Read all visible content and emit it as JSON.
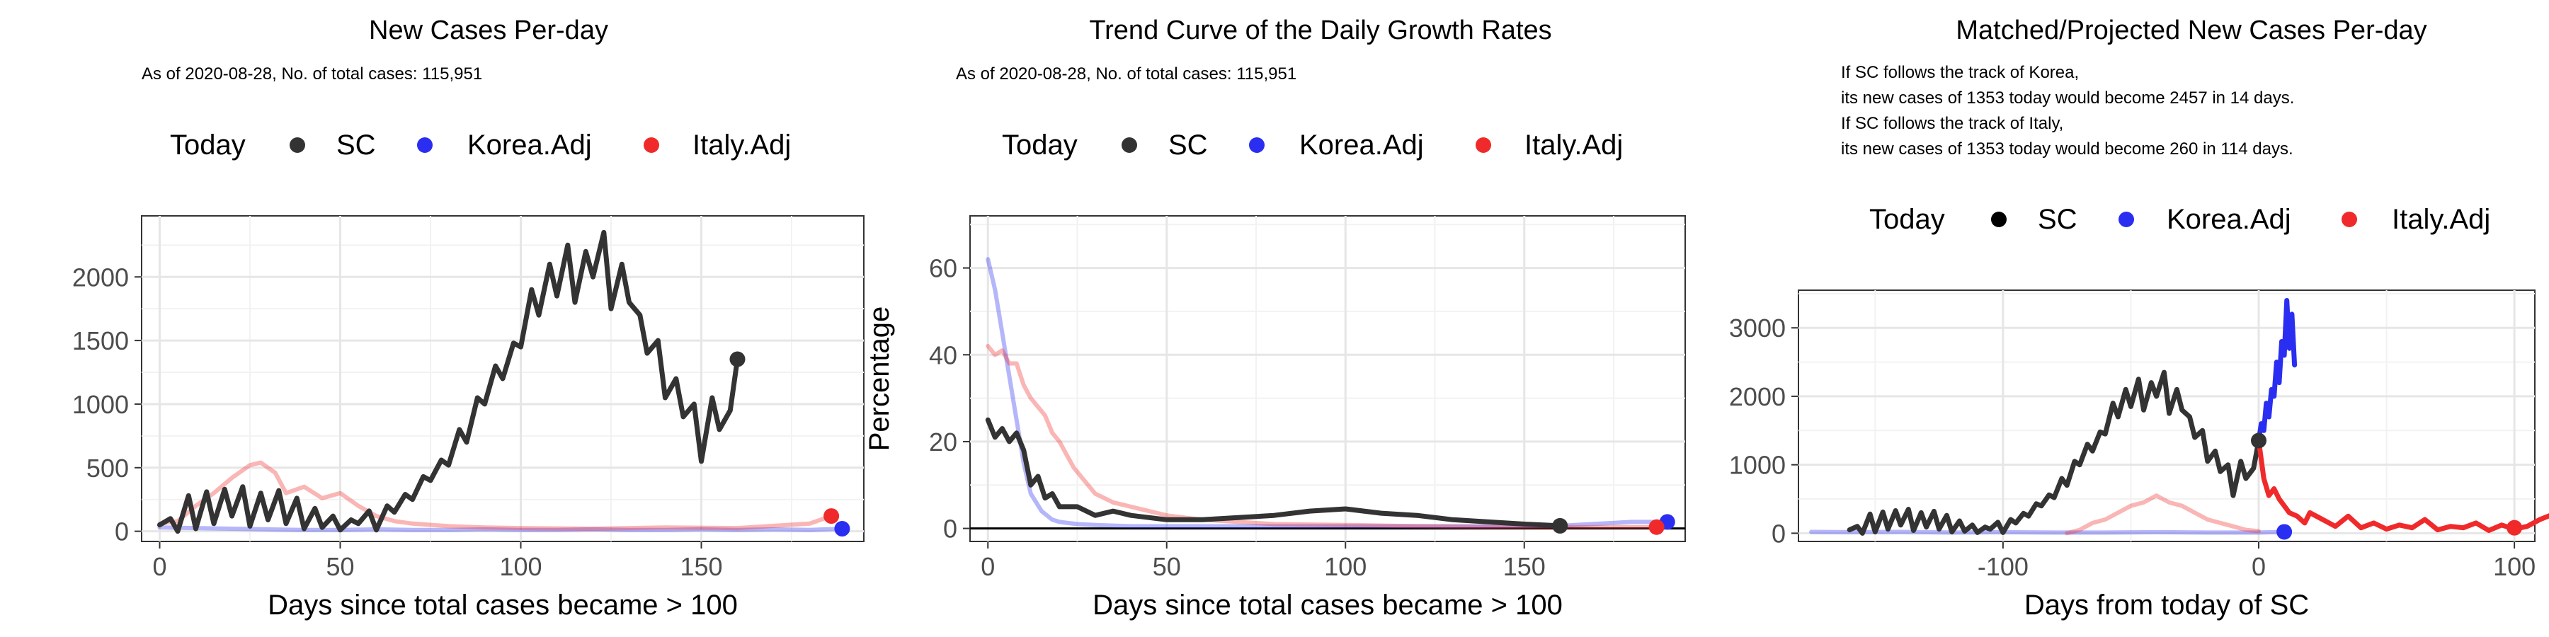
{
  "colors": {
    "sc": "#333333",
    "korea": "#2a2ef0",
    "italy": "#f02a2a",
    "grid_major": "#e6e6e6",
    "grid_minor": "#f2f2f2",
    "axis_text": "#4d4d4d"
  },
  "chart_data": [
    {
      "type": "line",
      "title": "New Cases Per-day",
      "subtitle": "As of 2020-08-28, No. of total cases: 115,951",
      "xlabel": "Days since total cases became > 100",
      "ylabel": "",
      "xlim": [
        -5,
        195
      ],
      "ylim": [
        -80,
        2480
      ],
      "xticks": [
        0,
        50,
        100,
        150
      ],
      "yticks": [
        0,
        500,
        1000,
        1500,
        2000
      ],
      "grid": true,
      "legend": {
        "position": "top",
        "title": "Today",
        "entries": [
          "SC",
          "Korea.Adj",
          "Italy.Adj"
        ]
      },
      "series": [
        {
          "name": "SC",
          "style": "bold",
          "color_key": "sc",
          "x": [
            0,
            3,
            5,
            8,
            10,
            13,
            15,
            18,
            20,
            23,
            25,
            28,
            30,
            33,
            35,
            38,
            40,
            43,
            45,
            48,
            50,
            53,
            55,
            58,
            60,
            63,
            65,
            68,
            70,
            73,
            75,
            78,
            80,
            83,
            85,
            88,
            90,
            93,
            95,
            98,
            100,
            103,
            105,
            108,
            110,
            113,
            115,
            118,
            120,
            123,
            125,
            128,
            130,
            133,
            135,
            138,
            140,
            143,
            145,
            148,
            150,
            153,
            155,
            158,
            160
          ],
          "y": [
            50,
            100,
            0,
            280,
            20,
            310,
            60,
            330,
            120,
            350,
            40,
            300,
            90,
            320,
            60,
            260,
            20,
            180,
            30,
            120,
            10,
            90,
            60,
            160,
            10,
            200,
            150,
            290,
            250,
            430,
            400,
            560,
            520,
            800,
            700,
            1050,
            1000,
            1300,
            1200,
            1480,
            1450,
            1900,
            1700,
            2100,
            1850,
            2250,
            1800,
            2200,
            2000,
            2350,
            1750,
            2100,
            1800,
            1700,
            1400,
            1500,
            1050,
            1200,
            900,
            1000,
            550,
            1050,
            800,
            950,
            1353
          ]
        },
        {
          "name": "Korea.Adj",
          "style": "light",
          "color_key": "korea",
          "x": [
            0,
            10,
            20,
            30,
            40,
            50,
            60,
            70,
            80,
            90,
            100,
            110,
            120,
            130,
            140,
            150,
            160,
            170,
            180,
            189
          ],
          "y": [
            30,
            25,
            20,
            15,
            10,
            10,
            15,
            10,
            10,
            15,
            10,
            10,
            15,
            10,
            10,
            15,
            10,
            15,
            10,
            20
          ]
        },
        {
          "name": "Italy.Adj",
          "style": "light",
          "color_key": "italy",
          "x": [
            0,
            5,
            10,
            15,
            20,
            25,
            28,
            32,
            35,
            40,
            45,
            50,
            55,
            60,
            65,
            70,
            80,
            90,
            100,
            120,
            140,
            160,
            180,
            186
          ],
          "y": [
            60,
            80,
            200,
            300,
            420,
            520,
            540,
            460,
            300,
            350,
            260,
            300,
            200,
            120,
            80,
            60,
            40,
            30,
            25,
            20,
            30,
            25,
            60,
            120
          ]
        }
      ],
      "today_points": [
        {
          "name": "SC",
          "x": 160,
          "y": 1353,
          "color_key": "sc"
        },
        {
          "name": "Korea.Adj",
          "x": 189,
          "y": 20,
          "color_key": "korea"
        },
        {
          "name": "Italy.Adj",
          "x": 186,
          "y": 120,
          "color_key": "italy"
        }
      ]
    },
    {
      "type": "line",
      "title": "Trend Curve of the Daily Growth Rates",
      "subtitle": "As of 2020-08-28, No. of total cases: 115,951",
      "xlabel": "Days since total cases became > 100",
      "ylabel": "Percentage",
      "xlim": [
        -5,
        195
      ],
      "ylim": [
        -3,
        72
      ],
      "xticks": [
        0,
        50,
        100,
        150
      ],
      "yticks": [
        0,
        20,
        40,
        60
      ],
      "hline": 0,
      "grid": true,
      "legend": {
        "position": "top",
        "title": "Today",
        "entries": [
          "SC",
          "Korea.Adj",
          "Italy.Adj"
        ]
      },
      "series": [
        {
          "name": "SC",
          "style": "bold",
          "color_key": "sc",
          "x": [
            0,
            2,
            4,
            6,
            8,
            10,
            12,
            14,
            16,
            18,
            20,
            25,
            30,
            35,
            40,
            50,
            60,
            70,
            80,
            90,
            100,
            110,
            120,
            130,
            140,
            150,
            160
          ],
          "y": [
            25,
            21,
            23,
            20,
            22,
            18,
            10,
            12,
            7,
            8,
            5,
            5,
            3,
            4,
            3,
            2,
            2,
            2.5,
            3,
            4,
            4.5,
            3.5,
            3,
            2,
            1.5,
            1,
            0.6
          ]
        },
        {
          "name": "Korea.Adj",
          "style": "light",
          "color_key": "korea",
          "x": [
            0,
            2,
            4,
            6,
            8,
            10,
            12,
            15,
            18,
            20,
            25,
            30,
            40,
            50,
            60,
            80,
            100,
            120,
            140,
            160,
            180,
            190
          ],
          "y": [
            62,
            55,
            45,
            35,
            25,
            15,
            8,
            4,
            2,
            1.5,
            1,
            0.8,
            0.5,
            0.5,
            0.5,
            0.5,
            0.5,
            0.5,
            0.5,
            0.6,
            1.5,
            1.5
          ]
        },
        {
          "name": "Italy.Adj",
          "style": "light",
          "color_key": "italy",
          "x": [
            0,
            2,
            4,
            6,
            8,
            10,
            12,
            14,
            16,
            18,
            20,
            22,
            24,
            26,
            28,
            30,
            35,
            40,
            45,
            50,
            60,
            80,
            100,
            120,
            140,
            160,
            180,
            187
          ],
          "y": [
            42,
            40,
            41,
            38,
            38,
            33,
            30,
            28,
            26,
            22,
            20,
            17,
            14,
            12,
            10,
            8,
            6,
            5,
            4,
            3,
            2,
            1,
            0.8,
            0.5,
            0.3,
            0.3,
            0.3,
            0.3
          ]
        }
      ],
      "today_points": [
        {
          "name": "SC",
          "x": 160,
          "y": 0.6,
          "color_key": "sc"
        },
        {
          "name": "Korea.Adj",
          "x": 190,
          "y": 1.5,
          "color_key": "korea"
        },
        {
          "name": "Italy.Adj",
          "x": 187,
          "y": 0.3,
          "color_key": "italy"
        }
      ]
    },
    {
      "type": "line",
      "title": "Matched/Projected New Cases Per-day",
      "subtitle_lines": [
        "If SC follows the track of Korea,",
        "its new cases of 1353 today would become 2457 in 14 days.",
        "If SC follows the track of Italy,",
        "its new cases of 1353 today would become 260 in 114 days."
      ],
      "xlabel": "Days from today of SC",
      "ylabel": "",
      "xlim": [
        -180,
        108
      ],
      "ylim": [
        -120,
        3550
      ],
      "xticks": [
        -100,
        0,
        100
      ],
      "yticks": [
        0,
        1000,
        2000,
        3000
      ],
      "grid": true,
      "legend": {
        "position": "top",
        "title": "Today",
        "entries": [
          "SC",
          "Korea.Adj",
          "Italy.Adj"
        ]
      },
      "series": [
        {
          "name": "SC",
          "style": "bold",
          "color_key": "sc",
          "x": [
            -160,
            -157,
            -155,
            -152,
            -150,
            -147,
            -145,
            -142,
            -140,
            -137,
            -135,
            -132,
            -130,
            -127,
            -125,
            -122,
            -120,
            -117,
            -115,
            -112,
            -110,
            -107,
            -105,
            -102,
            -100,
            -97,
            -95,
            -92,
            -90,
            -87,
            -85,
            -82,
            -80,
            -77,
            -75,
            -72,
            -70,
            -67,
            -65,
            -62,
            -60,
            -57,
            -55,
            -52,
            -50,
            -47,
            -45,
            -42,
            -40,
            -37,
            -35,
            -32,
            -30,
            -27,
            -25,
            -22,
            -20,
            -17,
            -15,
            -12,
            -10,
            -7,
            -5,
            -2,
            0
          ],
          "y": [
            50,
            100,
            0,
            280,
            20,
            310,
            60,
            330,
            120,
            350,
            40,
            300,
            90,
            320,
            60,
            260,
            20,
            180,
            30,
            120,
            10,
            90,
            60,
            160,
            10,
            200,
            150,
            290,
            250,
            430,
            400,
            560,
            520,
            800,
            700,
            1050,
            1000,
            1300,
            1200,
            1480,
            1450,
            1900,
            1700,
            2100,
            1850,
            2250,
            1800,
            2200,
            2000,
            2350,
            1750,
            2100,
            1800,
            1700,
            1400,
            1500,
            1050,
            1200,
            900,
            1000,
            550,
            1050,
            800,
            950,
            1353
          ]
        },
        {
          "name": "Korea.Adj",
          "style": "bold",
          "color_key": "korea",
          "x": [
            0,
            1,
            2,
            3,
            4,
            5,
            6,
            7,
            8,
            9,
            10,
            11,
            12,
            13,
            14
          ],
          "y": [
            1353,
            1600,
            1500,
            1900,
            1700,
            2100,
            2000,
            2500,
            2200,
            2800,
            2600,
            3400,
            2700,
            3200,
            2457
          ]
        },
        {
          "name": "Italy.Adj",
          "style": "bold",
          "color_key": "italy",
          "x": [
            0,
            2,
            4,
            6,
            8,
            10,
            12,
            15,
            18,
            20,
            25,
            30,
            35,
            40,
            45,
            50,
            55,
            60,
            65,
            70,
            75,
            80,
            85,
            90,
            95,
            100,
            105,
            110,
            114
          ],
          "y": [
            1353,
            800,
            550,
            650,
            500,
            400,
            300,
            250,
            150,
            300,
            200,
            100,
            250,
            80,
            150,
            60,
            120,
            80,
            200,
            50,
            100,
            80,
            150,
            40,
            120,
            60,
            100,
            200,
            260
          ]
        },
        {
          "name": "Korea.Adj",
          "style": "light",
          "color_key": "korea",
          "x": [
            -175,
            -160,
            -140,
            -120,
            -100,
            -80,
            -60,
            -40,
            -20,
            0,
            5,
            10
          ],
          "y": [
            20,
            15,
            20,
            10,
            15,
            10,
            10,
            15,
            10,
            10,
            15,
            20
          ]
        },
        {
          "name": "Italy.Adj",
          "style": "light",
          "color_key": "italy",
          "x": [
            -75,
            -70,
            -65,
            -60,
            -55,
            -50,
            -45,
            -40,
            -35,
            -30,
            -25,
            -20,
            -15,
            -10,
            -5,
            0
          ],
          "y": [
            0,
            50,
            150,
            200,
            300,
            400,
            450,
            550,
            450,
            400,
            300,
            200,
            150,
            100,
            50,
            30
          ]
        }
      ],
      "today_points": [
        {
          "name": "SC",
          "x": 0,
          "y": 1353,
          "color_key": "sc"
        },
        {
          "name": "Korea.Adj",
          "x": 10,
          "y": 20,
          "color_key": "korea"
        },
        {
          "name": "Italy.Adj",
          "x": 100,
          "y": 80,
          "color_key": "italy"
        }
      ]
    }
  ]
}
